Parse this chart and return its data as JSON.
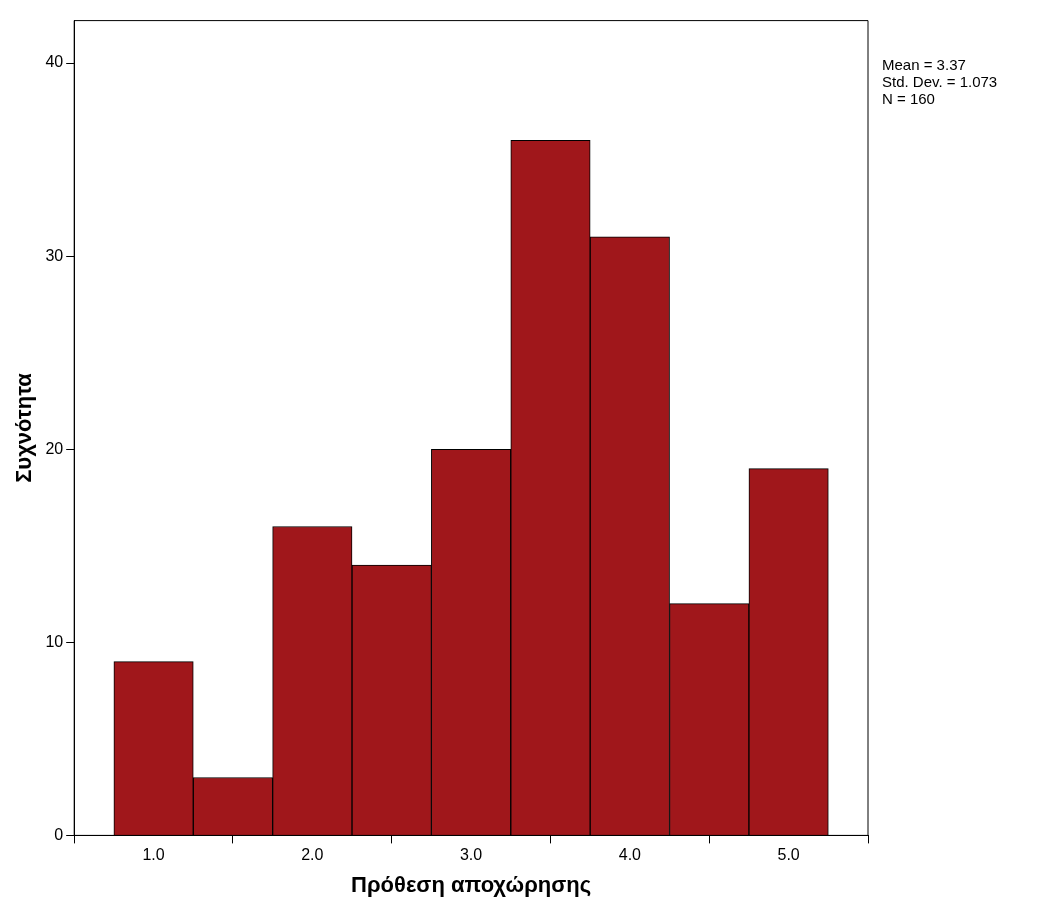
{
  "chart_data": {
    "type": "histogram",
    "xlabel": "Πρόθεση αποχώρησης",
    "ylabel": "Συχνότητα",
    "bins": [
      0.75,
      1.25,
      1.75,
      2.25,
      2.75,
      3.25,
      3.75,
      4.25,
      4.75,
      5.25
    ],
    "values": [
      9,
      3,
      16,
      14,
      20,
      36,
      31,
      12,
      19
    ],
    "color": "#a0171b",
    "xlim": [
      0.5,
      5.5
    ],
    "xticks": [
      {
        "value": 1,
        "label": "1.0"
      },
      {
        "value": 2,
        "label": "2.0"
      },
      {
        "value": 3,
        "label": "3.0"
      },
      {
        "value": 4,
        "label": "4.0"
      },
      {
        "value": 5,
        "label": "5.0"
      }
    ],
    "ylim": [
      0,
      42.2
    ],
    "yticks": [
      0,
      10,
      20,
      30,
      40
    ],
    "grid": false,
    "legend": false,
    "annotations": [
      "Mean = 3.37",
      "Std. Dev. = 1.073",
      "N = 160"
    ]
  }
}
